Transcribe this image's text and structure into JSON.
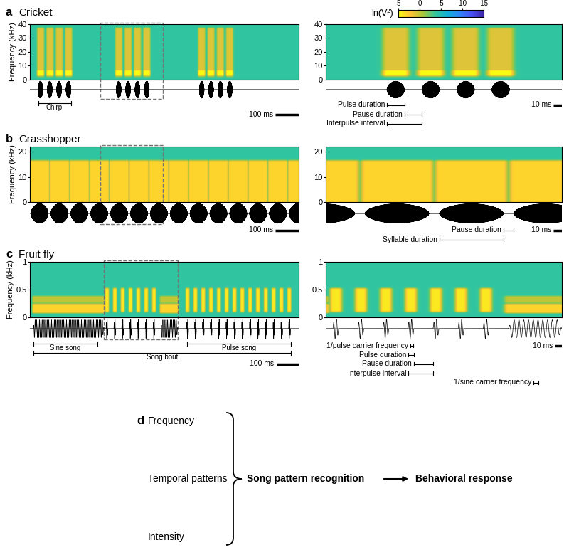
{
  "colorbar": {
    "label": "ln(V²)",
    "range": [
      5,
      -15
    ],
    "ticks": [
      5,
      0,
      -5,
      -10,
      -15
    ]
  },
  "chart_data": [
    {
      "type": "spectrogram",
      "label": "a",
      "title": "Cricket",
      "ylabel": "Frequency (kHz)",
      "ylim": [
        0,
        40
      ],
      "yticks": [
        0,
        10,
        20,
        30,
        40
      ],
      "tick_labels": "y",
      "xlim": [
        0,
        1150
      ],
      "zoom_xlim": [
        300,
        570
      ],
      "background": -4,
      "sounds": [
        {
          "onsets": [
            35,
            75,
            115,
            155,
            370,
            410,
            450,
            490,
            725,
            765,
            805,
            845
          ],
          "duration": 20,
          "carrier": 4.5,
          "bands": [
            {
              "range": [
                3,
                36
              ],
              "level": 1
            },
            {
              "range": [
                3.5,
                6
              ],
              "level": 5
            }
          ]
        }
      ],
      "annotations": [
        {
          "text": "Chirp",
          "start": 35,
          "end": 175
        }
      ],
      "zoom_annotations": [
        {
          "text": "Pulse duration",
          "start": 370,
          "end": 390
        },
        {
          "text": "Pause duration",
          "start": 390,
          "end": 410
        },
        {
          "text": "Interpulse interval",
          "start": 370,
          "end": 410
        }
      ],
      "scale_bar": {
        "length": 100,
        "label": "100 ms"
      },
      "zoom_scale_bar": {
        "length": 10,
        "label": "10 ms"
      }
    },
    {
      "type": "spectrogram",
      "label": "b",
      "title": "Grasshopper",
      "ylabel": "Frequency (kHz)",
      "ylim": [
        0,
        22
      ],
      "yticks": [
        0,
        10,
        20
      ],
      "tick_labels": "y",
      "xlim": [
        0,
        1150
      ],
      "zoom_xlim": [
        300,
        570
      ],
      "background": -4,
      "sounds": [
        {
          "onsets": [
            5,
            90,
            175,
            260,
            345,
            430,
            515,
            600,
            685,
            770,
            855,
            940,
            1025,
            1110
          ],
          "duration": 73,
          "carrier": 7,
          "bands": [
            {
              "range": [
                0,
                16
              ],
              "level": 3
            }
          ]
        }
      ],
      "annotations": [],
      "zoom_annotations": [
        {
          "text": "Pause duration",
          "start": 503,
          "end": 515
        },
        {
          "text": "Syllable duration",
          "start": 430,
          "end": 503
        }
      ],
      "scale_bar": {
        "length": 100,
        "label": "100 ms"
      },
      "zoom_scale_bar": {
        "length": 10,
        "label": "10 ms"
      }
    },
    {
      "type": "spectrogram",
      "label": "c",
      "title": "Fruit fly",
      "ylabel": "Frequency (kHz)",
      "ylim": [
        0,
        1
      ],
      "yticks": [
        0,
        0.5,
        1
      ],
      "tick_labels": "y",
      "xlim": [
        0,
        1200
      ],
      "zoom_xlim": [
        330,
        660
      ],
      "background": -4,
      "sounds": [
        {
          "segments": [
            [
              15,
              330
            ],
            [
              585,
              660
            ]
          ],
          "carrier": 0.15,
          "bands": [
            {
              "range": [
                0.1,
                0.22
              ],
              "level": 3
            },
            {
              "range": [
                0.28,
                0.36
              ],
              "level": 0
            }
          ]
        },
        {
          "onsets": [
            340,
            375,
            410,
            445,
            480,
            515,
            550,
            700,
            735,
            770,
            805,
            840,
            875,
            910,
            945,
            980,
            1015,
            1050,
            1085,
            1120,
            1155
          ],
          "duration": 8,
          "carrier": 0.25,
          "bands": [
            {
              "range": [
                0.12,
                0.5
              ],
              "level": 4
            }
          ]
        }
      ],
      "annotations": [
        {
          "text": "Sine song",
          "start": 15,
          "end": 300
        },
        {
          "text": "Pulse song",
          "start": 700,
          "end": 1165
        },
        {
          "text": "Song bout",
          "start": 15,
          "end": 1165
        }
      ],
      "zoom_annotations": [
        {
          "text": "1/pulse carrier frequency",
          "start": 448,
          "end": 452
        },
        {
          "text": "Pulse duration",
          "start": 445,
          "end": 453
        },
        {
          "text": "Pause duration",
          "start": 453,
          "end": 480
        },
        {
          "text": "Interpulse interval",
          "start": 445,
          "end": 480
        },
        {
          "text": "1/sine carrier frequency",
          "start": 620,
          "end": 627
        }
      ],
      "scale_bar": {
        "length": 100,
        "label": "100 ms"
      },
      "zoom_scale_bar": {
        "length": 10,
        "label": "10 ms"
      }
    }
  ],
  "diagram": {
    "label": "d",
    "inputs": [
      "Frequency",
      "Temporal patterns",
      "Intensity"
    ],
    "process": "Song pattern recognition",
    "output": "Behavioral response"
  }
}
